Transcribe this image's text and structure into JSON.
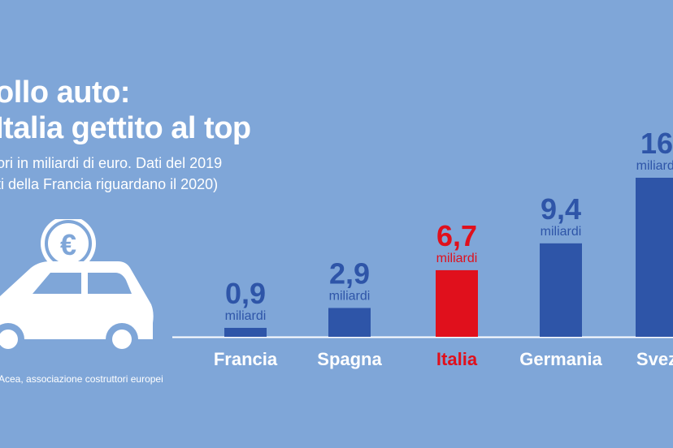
{
  "chart_data": {
    "type": "bar",
    "title": "ollo auto:\nItalia gettito al top",
    "subtitle": "ori in miliardi di euro. Dati del 2019\nti della Francia  riguardano il 2020)",
    "categories": [
      "Francia",
      "Spagna",
      "Italia",
      "Germania",
      "Svez"
    ],
    "values": [
      0.9,
      2.9,
      6.7,
      9.4,
      16
    ],
    "value_labels": [
      "0,9",
      "2,9",
      "6,7",
      "9,4",
      "16"
    ],
    "unit_label": "miliardi",
    "highlight_category": "Italia",
    "source": "Acea, associazione  costruttori europei",
    "colors": {
      "bar": "#2e55a8",
      "highlight": "#e0101c",
      "label": "#2e55a8",
      "background": "#7fa6d8",
      "axis": "#ffffff"
    }
  },
  "icons": [
    "euro-coin-icon",
    "car-icon"
  ]
}
